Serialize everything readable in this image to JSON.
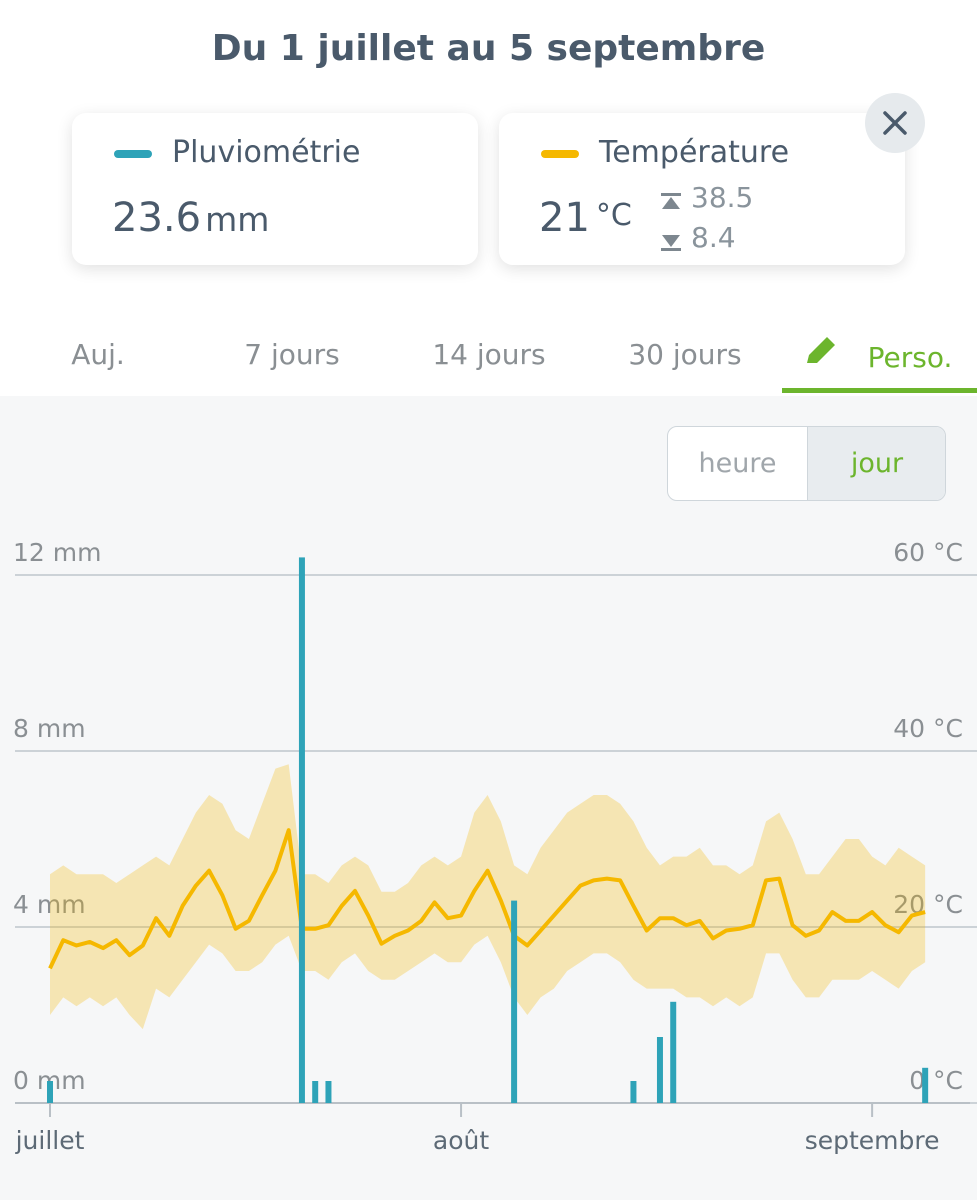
{
  "header": {
    "title": "Du 1 juillet au 5 septembre"
  },
  "cards": {
    "rain": {
      "value": 23.6,
      "unit": "mm"
    },
    "temp": {
      "value": 21,
      "unit": "°C",
      "max": 38.5,
      "min": 8.4
    }
  },
  "tabs": [
    "Auj.",
    "7 jours",
    "14 jours",
    "30 jours",
    "Perso."
  ],
  "toggle": [
    "heure",
    "jour"
  ],
  "chart_data": {
    "type": "combo",
    "categories": [
      "juillet",
      null,
      null,
      null,
      null,
      null,
      null,
      null,
      null,
      null,
      null,
      null,
      null,
      null,
      null,
      null,
      null,
      null,
      null,
      null,
      null,
      null,
      null,
      null,
      null,
      null,
      null,
      null,
      null,
      null,
      null,
      "août",
      null,
      null,
      null,
      null,
      null,
      null,
      null,
      null,
      null,
      null,
      null,
      null,
      null,
      null,
      null,
      null,
      null,
      null,
      null,
      null,
      null,
      null,
      null,
      null,
      null,
      null,
      null,
      null,
      null,
      null,
      "septembre",
      null,
      null,
      null,
      null
    ],
    "series": [
      {
        "name": "Pluviométrie",
        "type": "bar",
        "color": "#2ea3b8",
        "values": [
          0.5,
          0,
          0,
          0,
          0,
          0,
          0,
          0,
          0,
          0,
          0,
          0,
          0,
          0,
          0,
          0,
          0,
          0,
          0,
          12.4,
          0.5,
          0.5,
          0,
          0,
          0,
          0,
          0,
          0,
          0,
          0,
          0,
          0,
          0,
          0,
          0,
          4.6,
          0,
          0,
          0,
          0,
          0,
          0,
          0,
          0,
          0.5,
          0,
          1.5,
          2.3,
          0,
          0,
          0,
          0,
          0,
          0,
          0,
          0,
          0,
          0,
          0,
          0,
          0,
          0,
          0,
          0,
          0,
          0,
          0.8
        ]
      },
      {
        "name": "Température",
        "type": "line",
        "axis": "y2",
        "color": "#f5b800",
        "values": [
          15.3,
          18.5,
          17.9,
          18.3,
          17.6,
          18.5,
          16.8,
          17.9,
          21.0,
          19.0,
          22.4,
          24.7,
          26.4,
          23.6,
          19.8,
          20.7,
          23.6,
          26.4,
          31.0,
          19.8,
          19.8,
          20.2,
          22.4,
          24.1,
          21.3,
          18.1,
          19.0,
          19.6,
          20.7,
          22.8,
          21.0,
          21.3,
          24.1,
          26.4,
          23.0,
          19.0,
          17.9,
          19.6,
          21.3,
          23.0,
          24.7,
          25.3,
          25.5,
          25.3,
          22.4,
          19.6,
          21.0,
          21.0,
          20.2,
          20.7,
          18.7,
          19.6,
          19.8,
          20.2,
          25.3,
          25.5,
          20.2,
          19.0,
          19.6,
          21.7,
          20.7,
          20.7,
          21.7,
          20.2,
          19.4,
          21.3,
          21.7
        ],
        "max": [
          26,
          27,
          26,
          26,
          26,
          25,
          26,
          27,
          28,
          27,
          30,
          33,
          35,
          34,
          31,
          30,
          34,
          38,
          38.5,
          26,
          26,
          25,
          27,
          28,
          27,
          24,
          24,
          25,
          27,
          28,
          27,
          28,
          33,
          35,
          32,
          27,
          26,
          29,
          31,
          33,
          34,
          35,
          35,
          34,
          32,
          29,
          27,
          28,
          28,
          29,
          27,
          27,
          26,
          27,
          32,
          33,
          30,
          26,
          26,
          28,
          30,
          30,
          28,
          27,
          29,
          28,
          27
        ],
        "min": [
          10,
          12,
          11,
          12,
          11,
          12,
          10,
          8.4,
          13,
          12,
          14,
          16,
          18,
          17,
          15,
          15,
          16,
          18,
          19,
          15,
          15,
          14,
          16,
          17,
          15,
          14,
          14,
          15,
          16,
          17,
          16,
          16,
          18,
          19,
          16,
          12,
          10,
          12,
          13,
          15,
          16,
          17,
          17,
          16,
          14,
          13,
          13,
          13,
          12,
          12,
          11,
          12,
          11,
          12,
          17,
          17,
          14,
          12,
          12,
          14,
          14,
          14,
          15,
          14,
          13,
          15,
          16
        ]
      }
    ],
    "ylim": [
      0,
      12.5
    ],
    "yticks": [
      {
        "value": 0,
        "label": "0 mm"
      },
      {
        "value": 4,
        "label": "4 mm"
      },
      {
        "value": 8,
        "label": "8 mm"
      },
      {
        "value": 12,
        "label": "12 mm"
      }
    ],
    "y2lim": [
      0,
      62.5
    ],
    "y2ticks": [
      {
        "value": 0,
        "label": "0 °C"
      },
      {
        "value": 20,
        "label": "20 °C"
      },
      {
        "value": 40,
        "label": "40 °C"
      },
      {
        "value": 60,
        "label": "60 °C"
      }
    ],
    "grid": true
  }
}
